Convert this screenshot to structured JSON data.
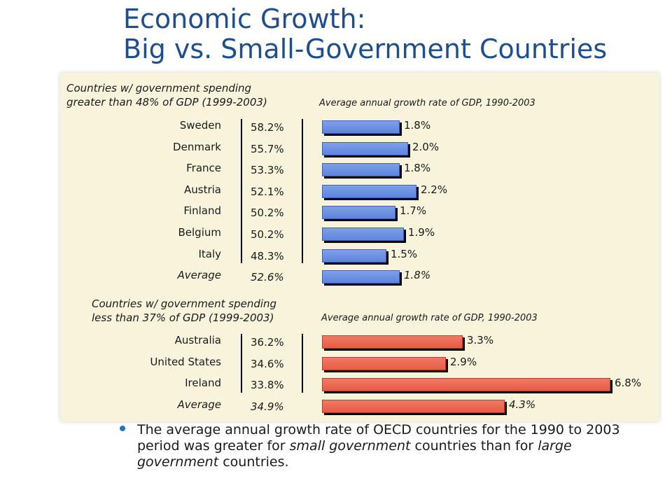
{
  "title": {
    "line1": "Economic Growth:",
    "line2": "Big vs. Small-Government Countries"
  },
  "colors": {
    "title": "#1f4e8c",
    "panel_bg": "#f8f3db",
    "big_bar": "#6a8ee0",
    "small_bar": "#ec604b",
    "bullet": "#1c75c8"
  },
  "chart_data": [
    {
      "type": "bar",
      "orientation": "horizontal",
      "section_title_line1": "Countries w/ government spending",
      "section_title_line2": "greater than 48% of GDP (1999-2003)",
      "value_header": "Average annual growth rate of GDP, 1990-2003",
      "categories": [
        "Sweden",
        "Denmark",
        "France",
        "Austria",
        "Finland",
        "Belgium",
        "Italy",
        "Average"
      ],
      "spending_labels": [
        "58.2%",
        "55.7%",
        "53.3%",
        "52.1%",
        "50.2%",
        "50.2%",
        "48.3%",
        "52.6%"
      ],
      "values": [
        1.8,
        2.0,
        1.8,
        2.2,
        1.7,
        1.9,
        1.5,
        1.8
      ],
      "value_labels": [
        "1.8%",
        "2.0%",
        "1.8%",
        "2.2%",
        "1.7%",
        "1.9%",
        "1.5%",
        "1.8%"
      ],
      "average_row": "Average",
      "bar_color": "#6a8ee0",
      "xlim": [
        0,
        6.8
      ]
    },
    {
      "type": "bar",
      "orientation": "horizontal",
      "section_title_line1": "Countries w/ government spending",
      "section_title_line2": "less than 37% of GDP (1999-2003)",
      "value_header": "Average annual growth rate of GDP, 1990-2003",
      "categories": [
        "Australia",
        "United States",
        "Ireland",
        "Average"
      ],
      "spending_labels": [
        "36.2%",
        "34.6%",
        "33.8%",
        "34.9%"
      ],
      "values": [
        3.3,
        2.9,
        6.8,
        4.3
      ],
      "value_labels": [
        "3.3%",
        "2.9%",
        "6.8%",
        "4.3%"
      ],
      "average_row": "Average",
      "bar_color": "#ec604b",
      "xlim": [
        0,
        6.8
      ]
    }
  ],
  "bullet": {
    "t1": "The average annual growth rate of OECD countries for the 1990 to 2003 period was greater for ",
    "t2": "small government",
    "t3": " countries than for ",
    "t4": "large government",
    "t5": " countries."
  }
}
